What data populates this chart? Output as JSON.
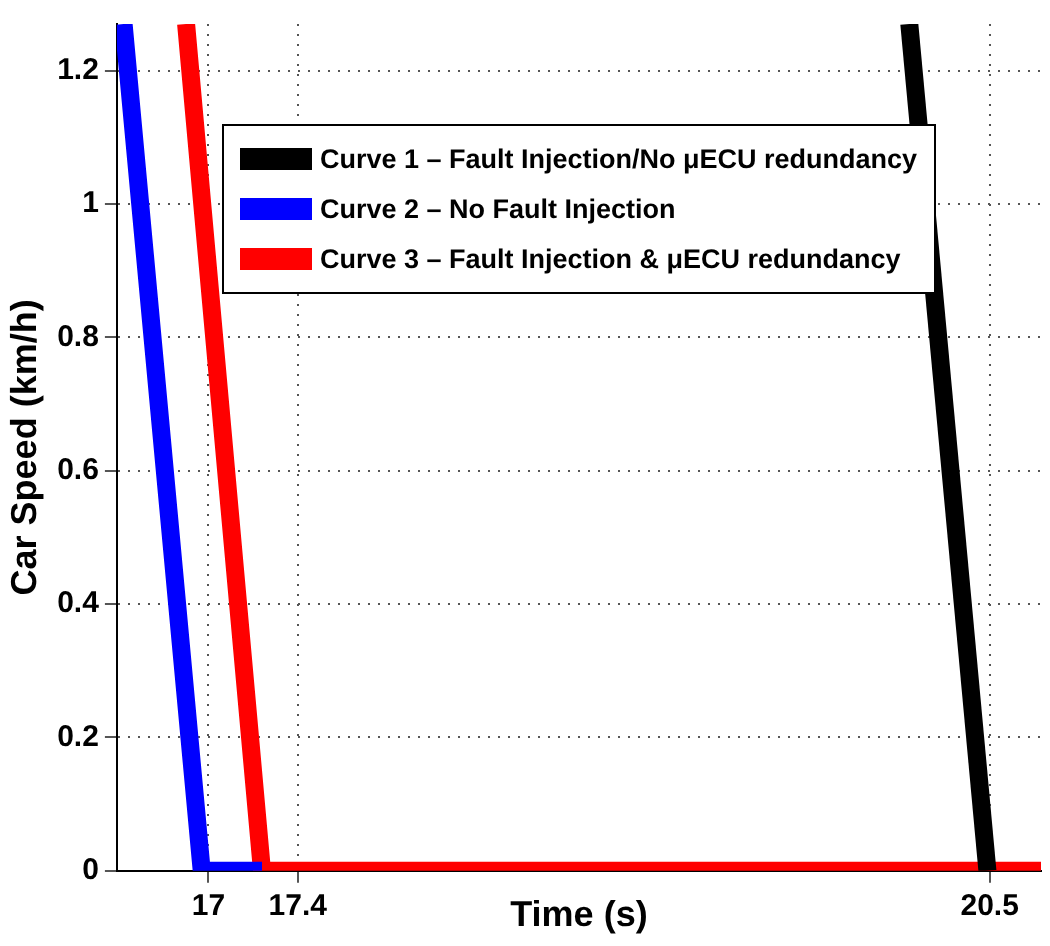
{
  "chart_data": {
    "type": "line",
    "xlabel": "Time (s)",
    "ylabel": "Car Speed (km/h)",
    "xlim": [
      16.59,
      20.73
    ],
    "ylim": [
      0,
      1.27
    ],
    "xticks": [
      17,
      17.4,
      20.5
    ],
    "yticks": [
      0,
      0.2,
      0.4,
      0.6,
      0.8,
      1,
      1.2
    ],
    "grid": true,
    "legend": "top",
    "marker": "none",
    "line_style": "solid",
    "series": [
      {
        "name": "Curve 1 – Fault Injection/No μECU redundancy",
        "color": "#000000",
        "x": [
          20.14,
          20.49
        ],
        "values": [
          1.27,
          0
        ]
      },
      {
        "name": "Curve 2 – No Fault Injection",
        "color": "#0000ff",
        "x": [
          16.62,
          16.97,
          17.24
        ],
        "values": [
          1.27,
          0,
          0
        ]
      },
      {
        "name": "Curve 3 – Fault Injection & μECU redundancy",
        "color": "#ff0000",
        "x": [
          16.9,
          17.24,
          20.73
        ],
        "values": [
          1.27,
          0,
          0
        ]
      }
    ]
  }
}
